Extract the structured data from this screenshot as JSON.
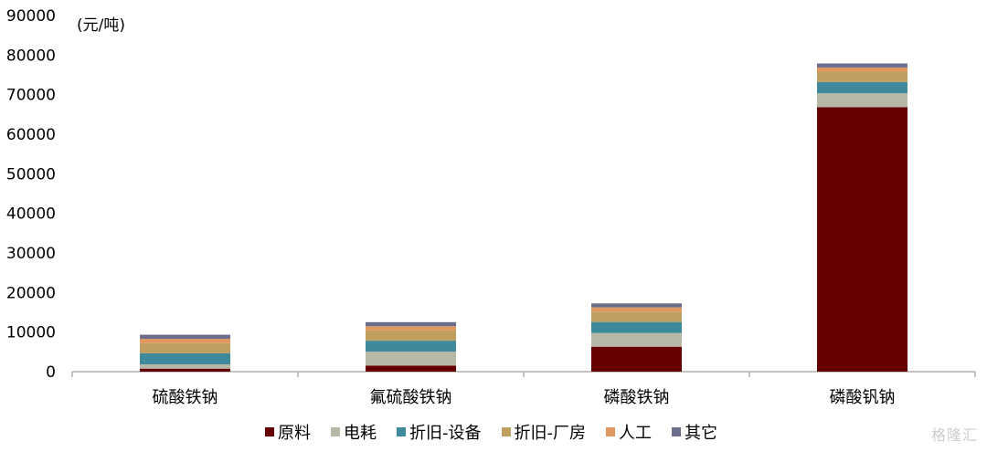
{
  "chart_data": {
    "type": "bar",
    "stacked": true,
    "unit_label": "(元/吨)",
    "categories": [
      "硫酸铁钠",
      "氟硫酸铁钠",
      "磷酸铁钠",
      "磷酸钒钠"
    ],
    "series": [
      {
        "name": "原料",
        "color": "#660000",
        "values": [
          760,
          1540,
          6300,
          66850
        ]
      },
      {
        "name": "电耗",
        "color": "#b8b8a6",
        "values": [
          1080,
          3500,
          3460,
          3500
        ]
      },
      {
        "name": "折旧-设备",
        "color": "#3e8a9c",
        "values": [
          2800,
          2780,
          2780,
          2820
        ]
      },
      {
        "name": "折旧-厂房",
        "color": "#c0a060",
        "values": [
          2550,
          2650,
          2620,
          2630
        ]
      },
      {
        "name": "人工",
        "color": "#e09860",
        "values": [
          1120,
          1000,
          1080,
          1060
        ]
      },
      {
        "name": "其它",
        "color": "#6a6e8c",
        "values": [
          1020,
          1040,
          1000,
          1020
        ]
      }
    ],
    "ylim": [
      0,
      90000
    ],
    "yticks": [
      "0",
      "10000",
      "20000",
      "30000",
      "40000",
      "50000",
      "60000",
      "70000",
      "80000",
      "90000"
    ],
    "grid": false,
    "legend_position": "bottom"
  },
  "watermark": "格隆汇"
}
